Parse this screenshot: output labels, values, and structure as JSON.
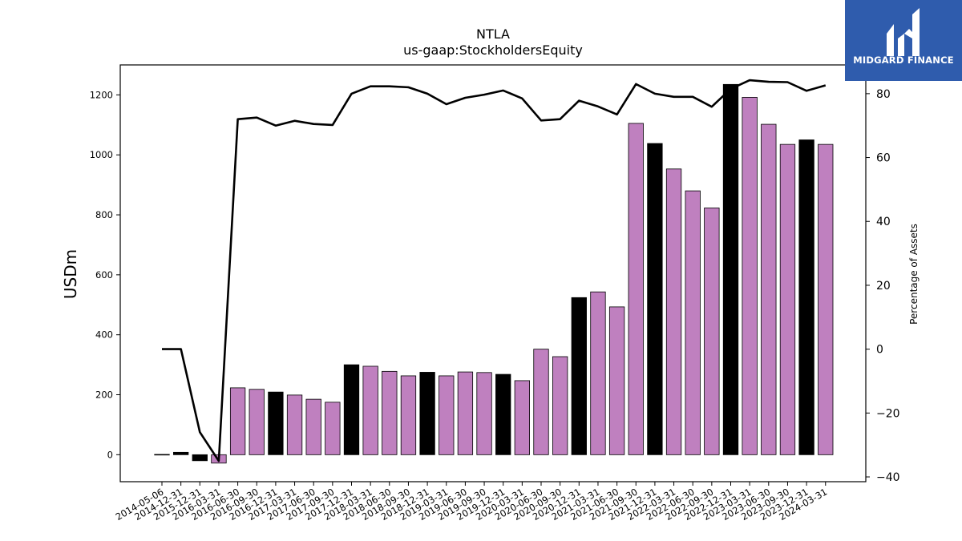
{
  "chart_data": {
    "type": "bar",
    "title": "NTLA",
    "subtitle": "us-gaap:StockholdersEquity",
    "ylabel": "USDm",
    "y2label": "Percentage of Assets",
    "ylim": [
      -90,
      1300
    ],
    "y2lim": [
      -41.5,
      89
    ],
    "yticks": [
      0,
      200,
      400,
      600,
      800,
      1000,
      1200
    ],
    "y2ticks": [
      -40,
      -20,
      0,
      20,
      40,
      60,
      80
    ],
    "categories": [
      "2014-05-06",
      "2014-12-31",
      "2015-12-31",
      "2016-03-31",
      "2016-06-30",
      "2016-09-30",
      "2016-12-31",
      "2017-03-31",
      "2017-06-30",
      "2017-09-30",
      "2017-12-31",
      "2018-03-31",
      "2018-06-30",
      "2018-09-30",
      "2018-12-31",
      "2019-03-31",
      "2019-06-30",
      "2019-09-30",
      "2019-12-31",
      "2020-03-31",
      "2020-06-30",
      "2020-09-30",
      "2020-12-31",
      "2021-03-31",
      "2021-06-30",
      "2021-09-30",
      "2021-12-31",
      "2022-03-31",
      "2022-06-30",
      "2022-09-30",
      "2022-12-31",
      "2023-03-31",
      "2023-06-30",
      "2023-09-30",
      "2023-12-31",
      "2024-03-31"
    ],
    "series": [
      {
        "type": "bar",
        "values": [
          1,
          8,
          -20,
          -28,
          223,
          218,
          209,
          199,
          185,
          175,
          300,
          295,
          278,
          263,
          275,
          263,
          276,
          274,
          268,
          247,
          352,
          327,
          524,
          543,
          493,
          1105,
          1038,
          953,
          880,
          823,
          1235,
          1192,
          1102,
          1035,
          1050,
          1035
        ],
        "bar_colors": [
          "#000000",
          "#000000",
          "#000000",
          "#bf80bf",
          "#bf80bf",
          "#bf80bf",
          "#000000",
          "#bf80bf",
          "#bf80bf",
          "#bf80bf",
          "#000000",
          "#bf80bf",
          "#bf80bf",
          "#bf80bf",
          "#000000",
          "#bf80bf",
          "#bf80bf",
          "#bf80bf",
          "#000000",
          "#bf80bf",
          "#bf80bf",
          "#bf80bf",
          "#000000",
          "#bf80bf",
          "#bf80bf",
          "#bf80bf",
          "#000000",
          "#bf80bf",
          "#bf80bf",
          "#bf80bf",
          "#000000",
          "#bf80bf",
          "#bf80bf",
          "#bf80bf",
          "#000000",
          "#bf80bf"
        ]
      },
      {
        "type": "line",
        "axis": "right",
        "values": [
          0,
          0,
          -26,
          -35,
          72,
          72.5,
          70,
          71.5,
          70.5,
          70.2,
          80,
          82.3,
          82.3,
          82,
          80,
          76.7,
          78.7,
          79.7,
          81,
          78.5,
          71.6,
          72,
          77.8,
          76,
          73.5,
          83,
          80,
          79,
          79,
          75.9,
          81.5,
          84.2,
          83.7,
          83.6,
          80.9,
          82.6
        ]
      }
    ],
    "legend": "none",
    "grid": false,
    "colors": {
      "bar_primary": "#bf80bf",
      "bar_highlight": "#000000",
      "line": "#000000"
    }
  },
  "branding": {
    "logo_text": "MIDGARD FINANCE",
    "logo_bg": "#2f5cad"
  }
}
